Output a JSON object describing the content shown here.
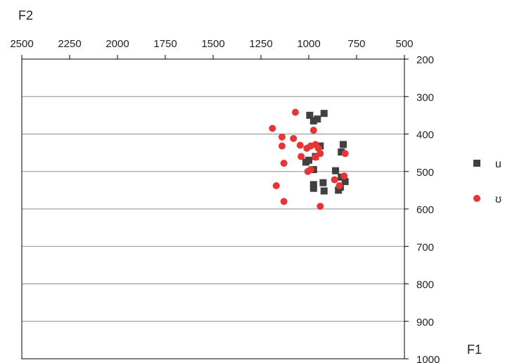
{
  "chart_data": {
    "type": "scatter",
    "title": "",
    "x_axis": {
      "label": "F2",
      "range": [
        500,
        2500
      ],
      "reversed": true,
      "ticks": [
        2500,
        2250,
        2000,
        1750,
        1500,
        1250,
        1000,
        750,
        500
      ],
      "position": "top"
    },
    "y_axis": {
      "label": "F1",
      "range": [
        200,
        1000
      ],
      "reversed": true,
      "ticks": [
        200,
        300,
        400,
        500,
        600,
        700,
        800,
        900,
        1000
      ],
      "position": "right"
    },
    "grid": "horizontal",
    "legend_position": "right",
    "series": [
      {
        "name": "u",
        "marker": "square",
        "color": "#404040",
        "points": [
          [
            995,
            350
          ],
          [
            975,
            365
          ],
          [
            955,
            360
          ],
          [
            920,
            345
          ],
          [
            820,
            428
          ],
          [
            830,
            448
          ],
          [
            940,
            432
          ],
          [
            965,
            460
          ],
          [
            1000,
            470
          ],
          [
            1015,
            475
          ],
          [
            975,
            495
          ],
          [
            975,
            535
          ],
          [
            975,
            545
          ],
          [
            925,
            530
          ],
          [
            920,
            552
          ],
          [
            860,
            498
          ],
          [
            830,
            515
          ],
          [
            810,
            527
          ],
          [
            835,
            542
          ],
          [
            845,
            550
          ]
        ]
      },
      {
        "name": "ʊ",
        "marker": "circle",
        "color": "#e53535",
        "points": [
          [
            1070,
            342
          ],
          [
            975,
            390
          ],
          [
            1190,
            385
          ],
          [
            1140,
            408
          ],
          [
            1080,
            412
          ],
          [
            1140,
            432
          ],
          [
            1045,
            430
          ],
          [
            990,
            432
          ],
          [
            965,
            428
          ],
          [
            1010,
            438
          ],
          [
            950,
            438
          ],
          [
            1040,
            460
          ],
          [
            965,
            462
          ],
          [
            940,
            452
          ],
          [
            810,
            452
          ],
          [
            1005,
            500
          ],
          [
            990,
            495
          ],
          [
            865,
            522
          ],
          [
            840,
            538
          ],
          [
            815,
            512
          ],
          [
            1130,
            478
          ],
          [
            1170,
            538
          ],
          [
            1130,
            580
          ],
          [
            940,
            593
          ]
        ]
      }
    ]
  },
  "legend": {
    "items": [
      "u",
      "ʊ"
    ]
  },
  "labels": {
    "x_axis_label": "F2",
    "y_axis_label": "F1"
  }
}
